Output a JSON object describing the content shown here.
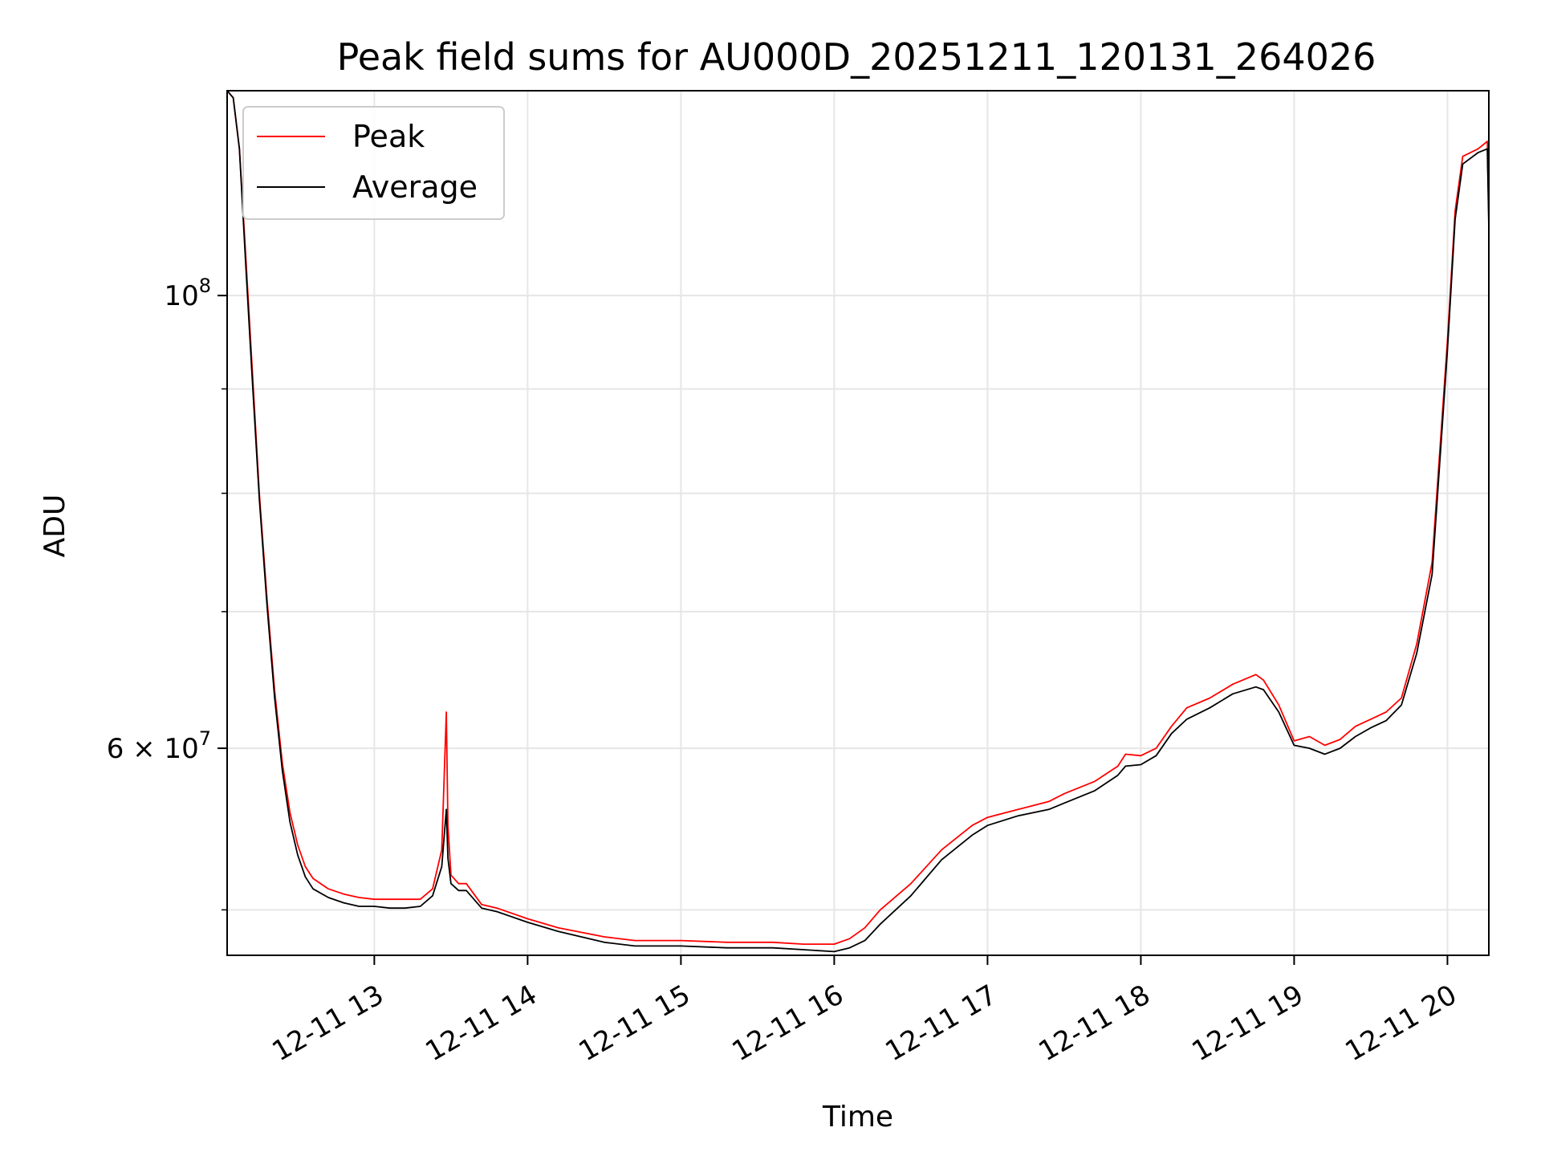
{
  "chart_data": {
    "type": "line",
    "title": "Peak field sums for AU000D_20251211_120131_264026",
    "xlabel": "Time",
    "ylabel": "ADU",
    "yscale": "log",
    "xlim": [
      12.04,
      20.27
    ],
    "ylim": [
      47500000,
      126000000
    ],
    "grid": true,
    "legend_position": "top-left",
    "x_ticks": [
      {
        "value": 13,
        "label": "12-11 13"
      },
      {
        "value": 14,
        "label": "12-11 14"
      },
      {
        "value": 15,
        "label": "12-11 15"
      },
      {
        "value": 16,
        "label": "12-11 16"
      },
      {
        "value": 17,
        "label": "12-11 17"
      },
      {
        "value": 18,
        "label": "12-11 18"
      },
      {
        "value": 19,
        "label": "12-11 19"
      },
      {
        "value": 20,
        "label": "12-11 20"
      }
    ],
    "y_ticks_major": [
      {
        "value": 100000000,
        "base": "10",
        "exponent": "8"
      },
      {
        "value": 60000000,
        "base": "6 × 10",
        "exponent": "7"
      }
    ],
    "y_ticks_minor": [
      50000000,
      70000000,
      80000000,
      90000000
    ],
    "x_unit": "hour of day (2025-12-11)",
    "series": [
      {
        "name": "Peak",
        "color": "#ff0000",
        "x": [
          12.04,
          12.08,
          12.12,
          12.16,
          12.2,
          12.25,
          12.3,
          12.35,
          12.4,
          12.45,
          12.5,
          12.55,
          12.6,
          12.7,
          12.8,
          12.9,
          13.0,
          13.1,
          13.2,
          13.3,
          13.38,
          13.44,
          13.47,
          13.48,
          13.5,
          13.55,
          13.6,
          13.7,
          13.8,
          14.0,
          14.2,
          14.5,
          14.7,
          15.0,
          15.3,
          15.6,
          15.8,
          16.0,
          16.1,
          16.2,
          16.3,
          16.5,
          16.7,
          16.9,
          17.0,
          17.2,
          17.4,
          17.5,
          17.7,
          17.85,
          17.9,
          18.0,
          18.1,
          18.2,
          18.3,
          18.45,
          18.6,
          18.75,
          18.8,
          18.9,
          19.0,
          19.1,
          19.2,
          19.3,
          19.4,
          19.5,
          19.6,
          19.7,
          19.8,
          19.9,
          20.0,
          20.05,
          20.1,
          20.2,
          20.26,
          20.27
        ],
        "y": [
          126000000,
          125000000,
          118000000,
          105000000,
          93000000,
          80000000,
          71000000,
          64000000,
          59000000,
          55800000,
          53800000,
          52500000,
          51800000,
          51200000,
          50900000,
          50700000,
          50600000,
          50600000,
          50600000,
          50600000,
          51200000,
          53500000,
          62500000,
          55000000,
          52000000,
          51500000,
          51500000,
          50300000,
          50100000,
          49500000,
          49000000,
          48500000,
          48300000,
          48300000,
          48200000,
          48200000,
          48100000,
          48100000,
          48400000,
          49000000,
          50000000,
          51500000,
          53500000,
          55000000,
          55500000,
          56000000,
          56500000,
          57000000,
          57800000,
          58800000,
          59600000,
          59500000,
          60000000,
          61500000,
          62800000,
          63500000,
          64500000,
          65200000,
          64800000,
          63000000,
          60500000,
          60800000,
          60200000,
          60600000,
          61500000,
          62000000,
          62500000,
          63500000,
          67500000,
          74000000,
          95000000,
          110000000,
          117000000,
          118000000,
          119000000,
          109000000
        ]
      },
      {
        "name": "Average",
        "color": "#000000",
        "x": [
          12.04,
          12.08,
          12.12,
          12.16,
          12.2,
          12.25,
          12.3,
          12.35,
          12.4,
          12.45,
          12.5,
          12.55,
          12.6,
          12.7,
          12.8,
          12.9,
          13.0,
          13.1,
          13.2,
          13.3,
          13.38,
          13.44,
          13.47,
          13.48,
          13.5,
          13.55,
          13.6,
          13.7,
          13.8,
          14.0,
          14.2,
          14.5,
          14.7,
          15.0,
          15.3,
          15.6,
          15.8,
          16.0,
          16.1,
          16.2,
          16.3,
          16.5,
          16.7,
          16.9,
          17.0,
          17.2,
          17.4,
          17.5,
          17.7,
          17.85,
          17.9,
          18.0,
          18.1,
          18.2,
          18.3,
          18.45,
          18.6,
          18.75,
          18.8,
          18.9,
          19.0,
          19.1,
          19.2,
          19.3,
          19.4,
          19.5,
          19.6,
          19.7,
          19.8,
          19.9,
          20.0,
          20.05,
          20.1,
          20.2,
          20.26,
          20.27
        ],
        "y": [
          126000000,
          125000000,
          118000000,
          104000000,
          92000000,
          79500000,
          70500000,
          63500000,
          58500000,
          55200000,
          53200000,
          51900000,
          51200000,
          50700000,
          50400000,
          50200000,
          50200000,
          50100000,
          50100000,
          50200000,
          50800000,
          52500000,
          56000000,
          53000000,
          51500000,
          51100000,
          51100000,
          50100000,
          49900000,
          49300000,
          48800000,
          48200000,
          48000000,
          48000000,
          47900000,
          47900000,
          47800000,
          47700000,
          47900000,
          48300000,
          49200000,
          50800000,
          52900000,
          54400000,
          55000000,
          55600000,
          56000000,
          56400000,
          57200000,
          58200000,
          58800000,
          58900000,
          59500000,
          61000000,
          62000000,
          62800000,
          63800000,
          64300000,
          64100000,
          62500000,
          60200000,
          60000000,
          59600000,
          60000000,
          60800000,
          61400000,
          61900000,
          63000000,
          66800000,
          73000000,
          94000000,
          109000000,
          116000000,
          117500000,
          118000000,
          108000000
        ]
      }
    ]
  }
}
